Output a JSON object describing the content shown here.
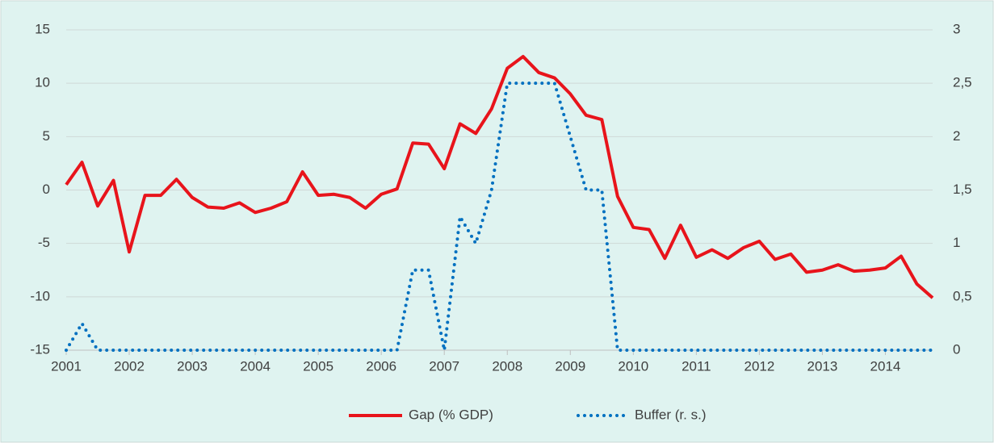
{
  "chart_data": {
    "type": "line",
    "x": [
      2001,
      2001.25,
      2001.5,
      2001.75,
      2002,
      2002.25,
      2002.5,
      2002.75,
      2003,
      2003.25,
      2003.5,
      2003.75,
      2004,
      2004.25,
      2004.5,
      2004.75,
      2005,
      2005.25,
      2005.5,
      2005.75,
      2006,
      2006.25,
      2006.5,
      2006.75,
      2007,
      2007.25,
      2007.5,
      2007.75,
      2008,
      2008.25,
      2008.5,
      2008.75,
      2009,
      2009.25,
      2009.5,
      2009.75,
      2010,
      2010.25,
      2010.5,
      2010.75,
      2011,
      2011.25,
      2011.5,
      2011.75,
      2012,
      2012.25,
      2012.5,
      2012.75,
      2013,
      2013.25,
      2013.5,
      2013.75,
      2014,
      2014.25,
      2014.5,
      2014.75
    ],
    "series": [
      {
        "name": "Gap (% GDP)",
        "color": "#e8141b",
        "style": "solid",
        "values": [
          0.5,
          2.6,
          -1.5,
          0.9,
          -5.8,
          -0.5,
          -0.5,
          1.0,
          -0.7,
          -1.6,
          -1.7,
          -1.2,
          -2.1,
          -1.7,
          -1.1,
          1.7,
          -0.5,
          -0.4,
          -0.7,
          -1.7,
          -0.4,
          0.1,
          4.4,
          4.3,
          2.0,
          6.2,
          5.3,
          7.6,
          11.4,
          12.5,
          11.0,
          10.5,
          9.0,
          7.0,
          6.6,
          -0.6,
          -3.5,
          -3.7,
          -6.4,
          -3.3,
          -6.3,
          -5.6,
          -6.4,
          -5.4,
          -4.8,
          -6.5,
          -6.0,
          -7.7,
          -7.5,
          -7.0,
          -7.6,
          -7.5,
          -7.3,
          -6.2,
          -8.8,
          -10.1
        ]
      },
      {
        "name": "Buffer (r. s.)",
        "color": "#0070c0",
        "style": "dotted",
        "axis": "y2",
        "values": [
          0,
          0.25,
          0,
          0,
          0,
          0,
          0,
          0,
          0,
          0,
          0,
          0,
          0,
          0,
          0,
          0,
          0,
          0,
          0,
          0,
          0,
          0,
          0.75,
          0.75,
          0,
          1.25,
          1.0,
          1.5,
          2.5,
          2.5,
          2.5,
          2.5,
          2.0,
          1.5,
          1.5,
          0,
          0,
          0,
          0,
          0,
          0,
          0,
          0,
          0,
          0,
          0,
          0,
          0,
          0,
          0,
          0,
          0,
          0,
          0,
          0,
          0
        ]
      }
    ],
    "xlim": [
      2001,
      2014.75
    ],
    "xticks": [
      2001,
      2002,
      2003,
      2004,
      2005,
      2006,
      2007,
      2008,
      2009,
      2010,
      2011,
      2012,
      2013,
      2014
    ],
    "ylim": [
      -15,
      15
    ],
    "yticks": [
      -15,
      -10,
      -5,
      0,
      5,
      10,
      15
    ],
    "y2lim": [
      0,
      3
    ],
    "y2ticks": [
      0,
      {
        "value": 0.5,
        "label": "0,5"
      },
      1,
      {
        "value": 1.5,
        "label": "1,5"
      },
      2,
      {
        "value": 2.5,
        "label": "2,5"
      },
      3
    ],
    "grid": true,
    "legend": "bottom"
  }
}
